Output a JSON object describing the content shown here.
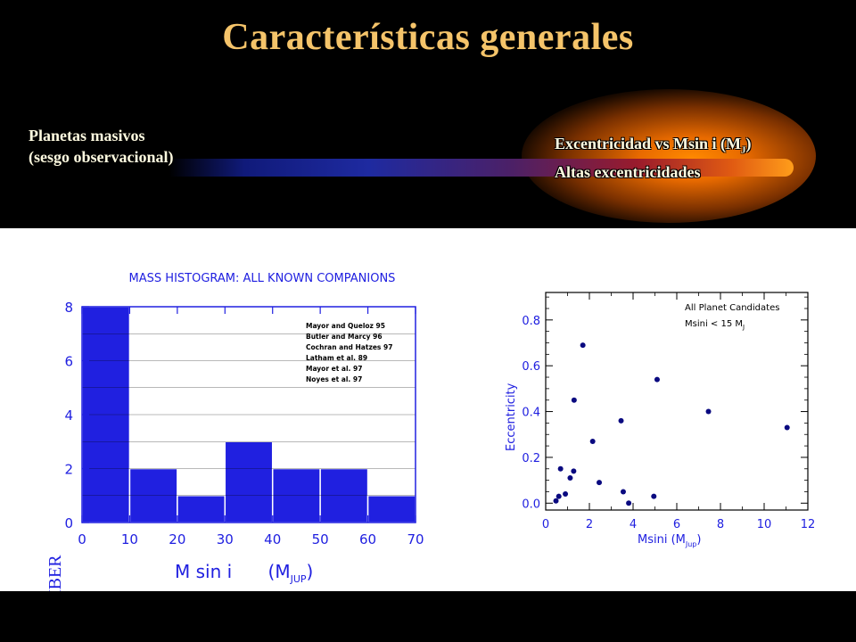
{
  "slide": {
    "title": "Características generales",
    "left_caption": {
      "line1": "Planetas masivos",
      "line2": "(sesgo observacional)"
    },
    "right_caption": {
      "line1_prefix": "Excentricidad vs Msin i (M",
      "line1_sub": "J",
      "line1_suffix": ")",
      "line2": "Altas excentricidades"
    }
  },
  "colors": {
    "title": "#f5c46a",
    "plot_ink": "#2020e0",
    "marker": "#0a0a80",
    "background": "#000000"
  },
  "chart_data": [
    {
      "type": "bar",
      "title": "MASS HISTOGRAM:  ALL KNOWN COMPANIONS",
      "xlabel": "M sin i",
      "xlabel_unit_main": "(M",
      "xlabel_unit_sub": "JUP",
      "xlabel_unit_close": ")",
      "ylabel": "NUMBER",
      "bins": [
        [
          0,
          10
        ],
        [
          10,
          20
        ],
        [
          20,
          30
        ],
        [
          30,
          40
        ],
        [
          40,
          50
        ],
        [
          50,
          60
        ],
        [
          60,
          70
        ]
      ],
      "values": [
        8,
        2,
        1,
        3,
        2,
        2,
        1
      ],
      "xlim": [
        0,
        70
      ],
      "ylim": [
        0,
        8
      ],
      "x_ticks": [
        0,
        10,
        20,
        30,
        40,
        50,
        60,
        70
      ],
      "y_ticks": [
        0,
        2,
        4,
        6,
        8
      ],
      "legend_entries": [
        "Mayor and Queloz 95",
        "Butler and Marcy 96",
        "Cochran and Hatzes 97",
        "Latham et al. 89",
        "Mayor et al. 97",
        "Noyes et al. 97"
      ],
      "legend_position": "top-right"
    },
    {
      "type": "scatter",
      "xlabel": "Msini (M",
      "xlabel_sub": "Jup",
      "xlabel_close": ")",
      "ylabel": "Eccentricity",
      "annotation_line1": "All Planet Candidates",
      "annotation_line2": "Msini < 15 M",
      "annotation_line2_sub": "J",
      "xlim": [
        0,
        12
      ],
      "ylim": [
        -0.03,
        0.92
      ],
      "x_ticks": [
        0,
        2,
        4,
        6,
        8,
        10,
        12
      ],
      "x_tick_labels": [
        "0",
        "2",
        "4",
        "6",
        "8",
        "10",
        "12"
      ],
      "y_ticks": [
        0.0,
        0.2,
        0.4,
        0.6,
        0.8
      ],
      "y_tick_labels": [
        "0.0",
        "0.2",
        "0.4",
        "0.6",
        "0.8"
      ],
      "points": [
        [
          0.47,
          0.01
        ],
        [
          0.6,
          0.03
        ],
        [
          0.68,
          0.15
        ],
        [
          0.9,
          0.04
        ],
        [
          1.12,
          0.11
        ],
        [
          1.28,
          0.14
        ],
        [
          1.3,
          0.45
        ],
        [
          1.7,
          0.69
        ],
        [
          2.15,
          0.27
        ],
        [
          2.45,
          0.09
        ],
        [
          3.45,
          0.36
        ],
        [
          3.55,
          0.05
        ],
        [
          3.8,
          0.0
        ],
        [
          4.95,
          0.03
        ],
        [
          5.1,
          0.54
        ],
        [
          7.45,
          0.4
        ],
        [
          11.05,
          0.33
        ]
      ]
    }
  ]
}
